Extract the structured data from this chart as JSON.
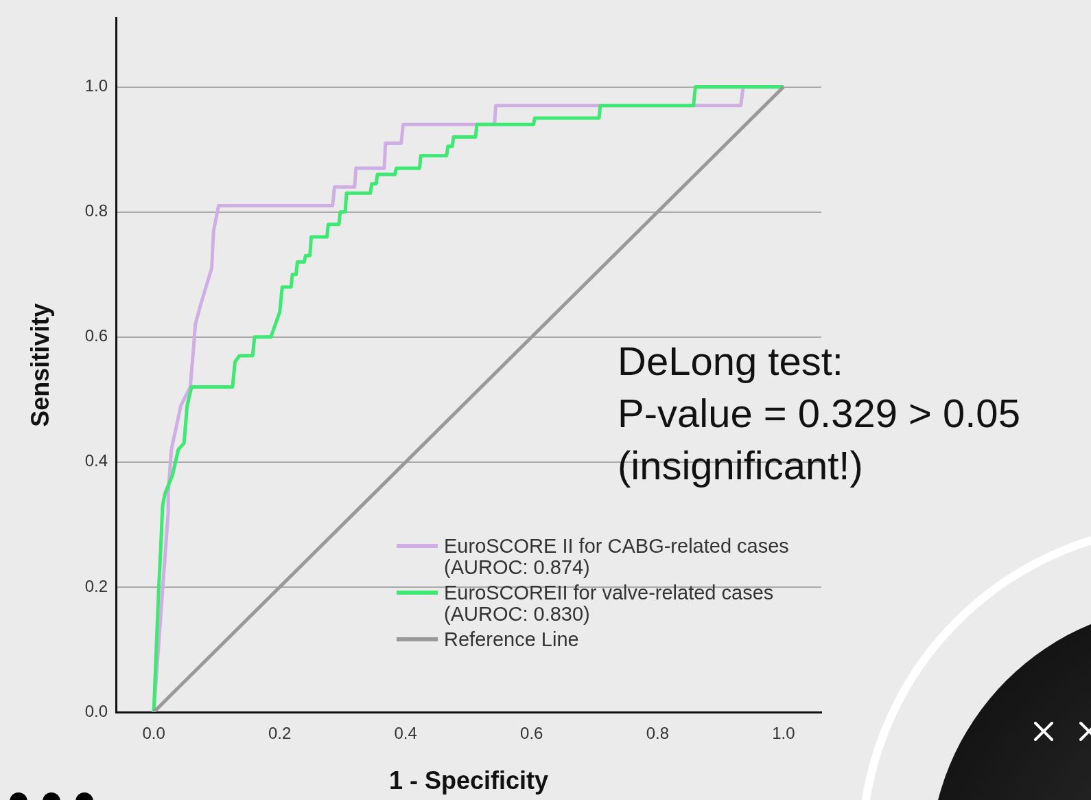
{
  "chart_data": {
    "type": "line",
    "xlabel": "1 - Specificity",
    "ylabel": "Sensitivity",
    "xlim": [
      -0.06,
      1.06
    ],
    "ylim": [
      0,
      1.11
    ],
    "xticks": [
      {
        "value": 0,
        "label": "0.0"
      },
      {
        "value": 0.2,
        "label": "0.2"
      },
      {
        "value": 0.4,
        "label": "0.4"
      },
      {
        "value": 0.6,
        "label": "0.6"
      },
      {
        "value": 0.8,
        "label": "0.8"
      },
      {
        "value": 1,
        "label": "1.0"
      }
    ],
    "yticks": [
      {
        "value": 0,
        "label": "0.0"
      },
      {
        "value": 0.2,
        "label": "0.2"
      },
      {
        "value": 0.4,
        "label": "0.4"
      },
      {
        "value": 0.6,
        "label": "0.6"
      },
      {
        "value": 0.8,
        "label": "0.8"
      },
      {
        "value": 1,
        "label": "1.0"
      }
    ],
    "grid": "y",
    "legend": "bottom right",
    "annotations": [
      "DeLong test:",
      "P-value = 0.329 > 0.05",
      "(insignificant!)"
    ],
    "series": [
      {
        "name": "EuroSCORE II for CABG-related cases (AUROC: 0.874)",
        "color": "#cfaee4",
        "x": [
          0,
          0.023,
          0.023,
          0.028,
          0.043,
          0.058,
          0.063,
          0.066,
          0.074,
          0.083,
          0.092,
          0.095,
          0.103,
          0.284,
          0.287,
          0.319,
          0.321,
          0.366,
          0.368,
          0.393,
          0.396,
          0.541,
          0.543,
          0.932,
          0.936,
          1.0
        ],
        "values": [
          0,
          0.32,
          0.35,
          0.42,
          0.49,
          0.52,
          0.58,
          0.62,
          0.65,
          0.68,
          0.71,
          0.77,
          0.81,
          0.81,
          0.84,
          0.84,
          0.87,
          0.87,
          0.91,
          0.91,
          0.94,
          0.94,
          0.97,
          0.97,
          1.0,
          1.0
        ]
      },
      {
        "name": "EuroSCOREII for valve-related cases (AUROC: 0.830)",
        "color": "#3de873",
        "x": [
          0,
          0.008,
          0.011,
          0.014,
          0.018,
          0.03,
          0.039,
          0.048,
          0.053,
          0.06,
          0.125,
          0.129,
          0.136,
          0.157,
          0.16,
          0.186,
          0.193,
          0.2,
          0.204,
          0.218,
          0.22,
          0.226,
          0.228,
          0.239,
          0.241,
          0.248,
          0.25,
          0.275,
          0.277,
          0.294,
          0.296,
          0.304,
          0.306,
          0.344,
          0.346,
          0.353,
          0.355,
          0.383,
          0.385,
          0.422,
          0.424,
          0.465,
          0.467,
          0.474,
          0.476,
          0.511,
          0.513,
          0.603,
          0.605,
          0.707,
          0.709,
          0.857,
          0.86,
          1.0
        ],
        "values": [
          0,
          0.2,
          0.26,
          0.33,
          0.35,
          0.38,
          0.42,
          0.43,
          0.49,
          0.52,
          0.52,
          0.56,
          0.57,
          0.57,
          0.6,
          0.6,
          0.62,
          0.64,
          0.68,
          0.68,
          0.7,
          0.7,
          0.72,
          0.72,
          0.73,
          0.73,
          0.76,
          0.76,
          0.78,
          0.78,
          0.8,
          0.8,
          0.83,
          0.83,
          0.845,
          0.845,
          0.86,
          0.86,
          0.87,
          0.87,
          0.89,
          0.89,
          0.905,
          0.905,
          0.92,
          0.92,
          0.94,
          0.94,
          0.95,
          0.95,
          0.97,
          0.97,
          1.0,
          1.0
        ]
      },
      {
        "name": "Reference Line",
        "color": "#999999",
        "x": [
          0,
          1
        ],
        "values": [
          0,
          1
        ]
      }
    ]
  }
}
